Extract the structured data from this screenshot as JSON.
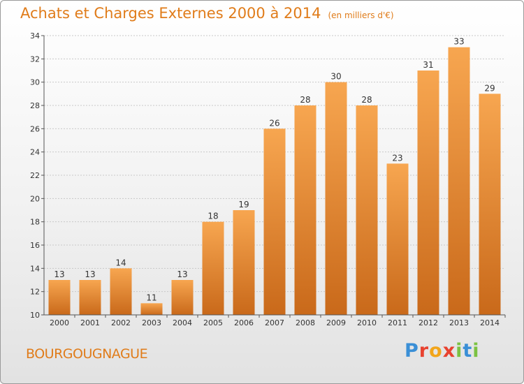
{
  "header": {
    "title": "Achats et Charges Externes 2000 à 2014",
    "subtitle": "(en milliers d'€)"
  },
  "footer": {
    "commune": "BOURGOUGNAGUE",
    "logo_letters": [
      "P",
      "r",
      "o",
      "x",
      "i",
      "t",
      "i"
    ],
    "logo_colors": [
      "#3a8fd6",
      "#e8422f",
      "#f2a51a",
      "#e8422f",
      "#7cc242",
      "#3a8fd6",
      "#7cc242"
    ]
  },
  "colors": {
    "bar_top": "#f7a650",
    "bar_bottom": "#c9691a",
    "grid": "#c8c8c8",
    "accent": "#e07c1a"
  },
  "chart_data": {
    "type": "bar",
    "title": "Achats et Charges Externes 2000 à 2014",
    "subtitle": "(en milliers d'€)",
    "categories": [
      "2000",
      "2001",
      "2002",
      "2003",
      "2004",
      "2005",
      "2006",
      "2007",
      "2008",
      "2009",
      "2010",
      "2011",
      "2012",
      "2013",
      "2014"
    ],
    "values": [
      13,
      13,
      14,
      11,
      13,
      18,
      19,
      26,
      28,
      30,
      28,
      23,
      31,
      33,
      29
    ],
    "ylim": [
      10,
      34
    ],
    "yticks": [
      10,
      12,
      14,
      16,
      18,
      20,
      22,
      24,
      26,
      28,
      30,
      32,
      34
    ],
    "grid": true,
    "xlabel": "",
    "ylabel": ""
  }
}
